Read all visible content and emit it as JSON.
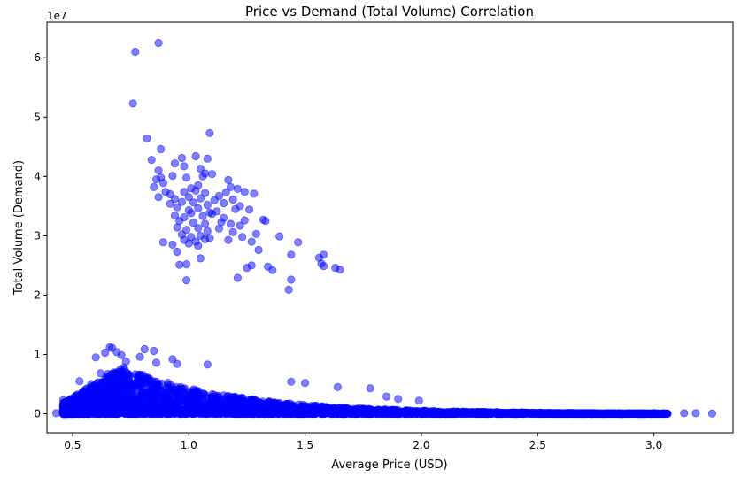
{
  "chart_data": {
    "type": "scatter",
    "title": "Price vs Demand (Total Volume) Correlation",
    "xlabel": "Average Price (USD)",
    "ylabel": "Total Volume (Demand)",
    "y_offset_label": "1e7",
    "xlim": [
      0.39,
      3.34
    ],
    "ylim": [
      -3200000,
      66000000
    ],
    "x_ticks": [
      0.5,
      1.0,
      1.5,
      2.0,
      2.5,
      3.0
    ],
    "x_tick_labels": [
      "0.5",
      "1.0",
      "1.5",
      "2.0",
      "2.5",
      "3.0"
    ],
    "y_ticks": [
      0,
      10000000,
      20000000,
      30000000,
      40000000,
      50000000,
      60000000
    ],
    "y_tick_labels": [
      "0",
      "1",
      "2",
      "3",
      "4",
      "5",
      "6"
    ],
    "point_color": "#0000ff",
    "point_alpha": 0.5,
    "grid": false,
    "series": [
      {
        "name": "Total Volume",
        "points": [
          [
            0.87,
            62500000
          ],
          [
            0.77,
            61000000
          ],
          [
            0.76,
            52300000
          ],
          [
            0.82,
            46400000
          ],
          [
            1.09,
            47300000
          ],
          [
            0.88,
            44600000
          ],
          [
            0.84,
            42800000
          ],
          [
            0.97,
            43100000
          ],
          [
            1.03,
            43400000
          ],
          [
            1.08,
            43000000
          ],
          [
            0.94,
            42200000
          ],
          [
            0.98,
            41700000
          ],
          [
            1.05,
            41300000
          ],
          [
            0.87,
            41000000
          ],
          [
            1.1,
            40400000
          ],
          [
            0.93,
            40100000
          ],
          [
            1.07,
            40500000
          ],
          [
            0.88,
            39800000
          ],
          [
            0.86,
            39500000
          ],
          [
            0.99,
            39800000
          ],
          [
            1.06,
            40000000
          ],
          [
            1.17,
            39400000
          ],
          [
            0.89,
            38900000
          ],
          [
            0.85,
            38200000
          ],
          [
            1.04,
            38500000
          ],
          [
            1.01,
            38000000
          ],
          [
            1.18,
            38200000
          ],
          [
            1.21,
            37900000
          ],
          [
            0.9,
            37400000
          ],
          [
            0.92,
            37000000
          ],
          [
            0.98,
            37400000
          ],
          [
            1.03,
            37600000
          ],
          [
            1.07,
            37200000
          ],
          [
            1.13,
            36700000
          ],
          [
            1.16,
            37300000
          ],
          [
            1.24,
            37400000
          ],
          [
            1.28,
            37100000
          ],
          [
            0.87,
            36500000
          ],
          [
            0.94,
            36200000
          ],
          [
            1.0,
            36500000
          ],
          [
            1.05,
            36300000
          ],
          [
            1.11,
            36000000
          ],
          [
            1.19,
            36100000
          ],
          [
            0.92,
            35400000
          ],
          [
            0.97,
            35700000
          ],
          [
            1.02,
            35600000
          ],
          [
            1.08,
            35200000
          ],
          [
            1.15,
            35500000
          ],
          [
            1.22,
            35000000
          ],
          [
            1.26,
            34400000
          ],
          [
            0.95,
            34800000
          ],
          [
            1.0,
            34300000
          ],
          [
            1.04,
            34600000
          ],
          [
            1.09,
            33900000
          ],
          [
            1.12,
            34100000
          ],
          [
            1.2,
            34500000
          ],
          [
            0.94,
            33400000
          ],
          [
            0.98,
            33100000
          ],
          [
            1.01,
            33800000
          ],
          [
            1.06,
            33300000
          ],
          [
            1.1,
            33700000
          ],
          [
            1.15,
            33000000
          ],
          [
            1.24,
            32600000
          ],
          [
            1.32,
            32700000
          ],
          [
            1.33,
            32500000
          ],
          [
            0.96,
            32500000
          ],
          [
            1.02,
            32200000
          ],
          [
            1.07,
            32000000
          ],
          [
            1.14,
            32300000
          ],
          [
            1.18,
            32000000
          ],
          [
            1.22,
            31700000
          ],
          [
            0.95,
            31400000
          ],
          [
            0.99,
            31000000
          ],
          [
            1.04,
            31300000
          ],
          [
            1.08,
            30800000
          ],
          [
            1.13,
            31200000
          ],
          [
            1.19,
            30600000
          ],
          [
            1.29,
            30300000
          ],
          [
            0.97,
            30200000
          ],
          [
            1.01,
            29800000
          ],
          [
            1.05,
            30000000
          ],
          [
            1.09,
            29600000
          ],
          [
            1.23,
            29800000
          ],
          [
            1.39,
            29900000
          ],
          [
            0.98,
            29300000
          ],
          [
            1.03,
            29000000
          ],
          [
            1.07,
            29400000
          ],
          [
            1.17,
            29300000
          ],
          [
            1.27,
            29000000
          ],
          [
            1.47,
            28900000
          ],
          [
            0.89,
            28900000
          ],
          [
            0.93,
            28500000
          ],
          [
            1.0,
            28700000
          ],
          [
            1.04,
            28300000
          ],
          [
            1.3,
            27600000
          ],
          [
            0.95,
            27300000
          ],
          [
            1.44,
            26800000
          ],
          [
            1.58,
            26800000
          ],
          [
            1.56,
            26300000
          ],
          [
            1.05,
            26200000
          ],
          [
            0.96,
            25100000
          ],
          [
            0.99,
            25200000
          ],
          [
            1.27,
            25000000
          ],
          [
            1.34,
            24800000
          ],
          [
            1.57,
            25300000
          ],
          [
            1.25,
            24600000
          ],
          [
            1.36,
            24200000
          ],
          [
            1.58,
            24900000
          ],
          [
            1.63,
            24600000
          ],
          [
            1.65,
            24300000
          ],
          [
            0.99,
            22500000
          ],
          [
            1.21,
            22900000
          ],
          [
            1.44,
            22600000
          ],
          [
            1.43,
            20900000
          ],
          [
            0.66,
            11200000
          ],
          [
            0.67,
            11100000
          ],
          [
            0.81,
            10900000
          ],
          [
            0.85,
            10600000
          ],
          [
            0.64,
            10300000
          ],
          [
            0.69,
            10400000
          ],
          [
            0.6,
            9500000
          ],
          [
            0.71,
            9900000
          ],
          [
            0.79,
            9600000
          ],
          [
            0.93,
            9200000
          ],
          [
            0.73,
            8800000
          ],
          [
            0.86,
            8600000
          ],
          [
            1.08,
            8300000
          ],
          [
            0.95,
            8400000
          ],
          [
            0.62,
            6800000
          ],
          [
            0.65,
            6700000
          ],
          [
            0.53,
            5500000
          ],
          [
            1.44,
            5400000
          ],
          [
            1.5,
            5200000
          ],
          [
            0.58,
            5000000
          ],
          [
            0.62,
            4300000
          ],
          [
            0.68,
            4100000
          ],
          [
            1.64,
            4500000
          ],
          [
            1.78,
            4300000
          ],
          [
            1.85,
            2900000
          ],
          [
            1.9,
            2500000
          ],
          [
            1.99,
            2200000
          ],
          [
            0.46,
            2300000
          ],
          [
            0.5,
            1500000
          ],
          [
            0.43,
            100000
          ],
          [
            0.48,
            300000
          ],
          [
            3.13,
            100000
          ],
          [
            3.18,
            100000
          ],
          [
            3.25,
            50000
          ],
          [
            3.04,
            80000
          ],
          [
            3.0,
            120000
          ]
        ]
      }
    ]
  }
}
